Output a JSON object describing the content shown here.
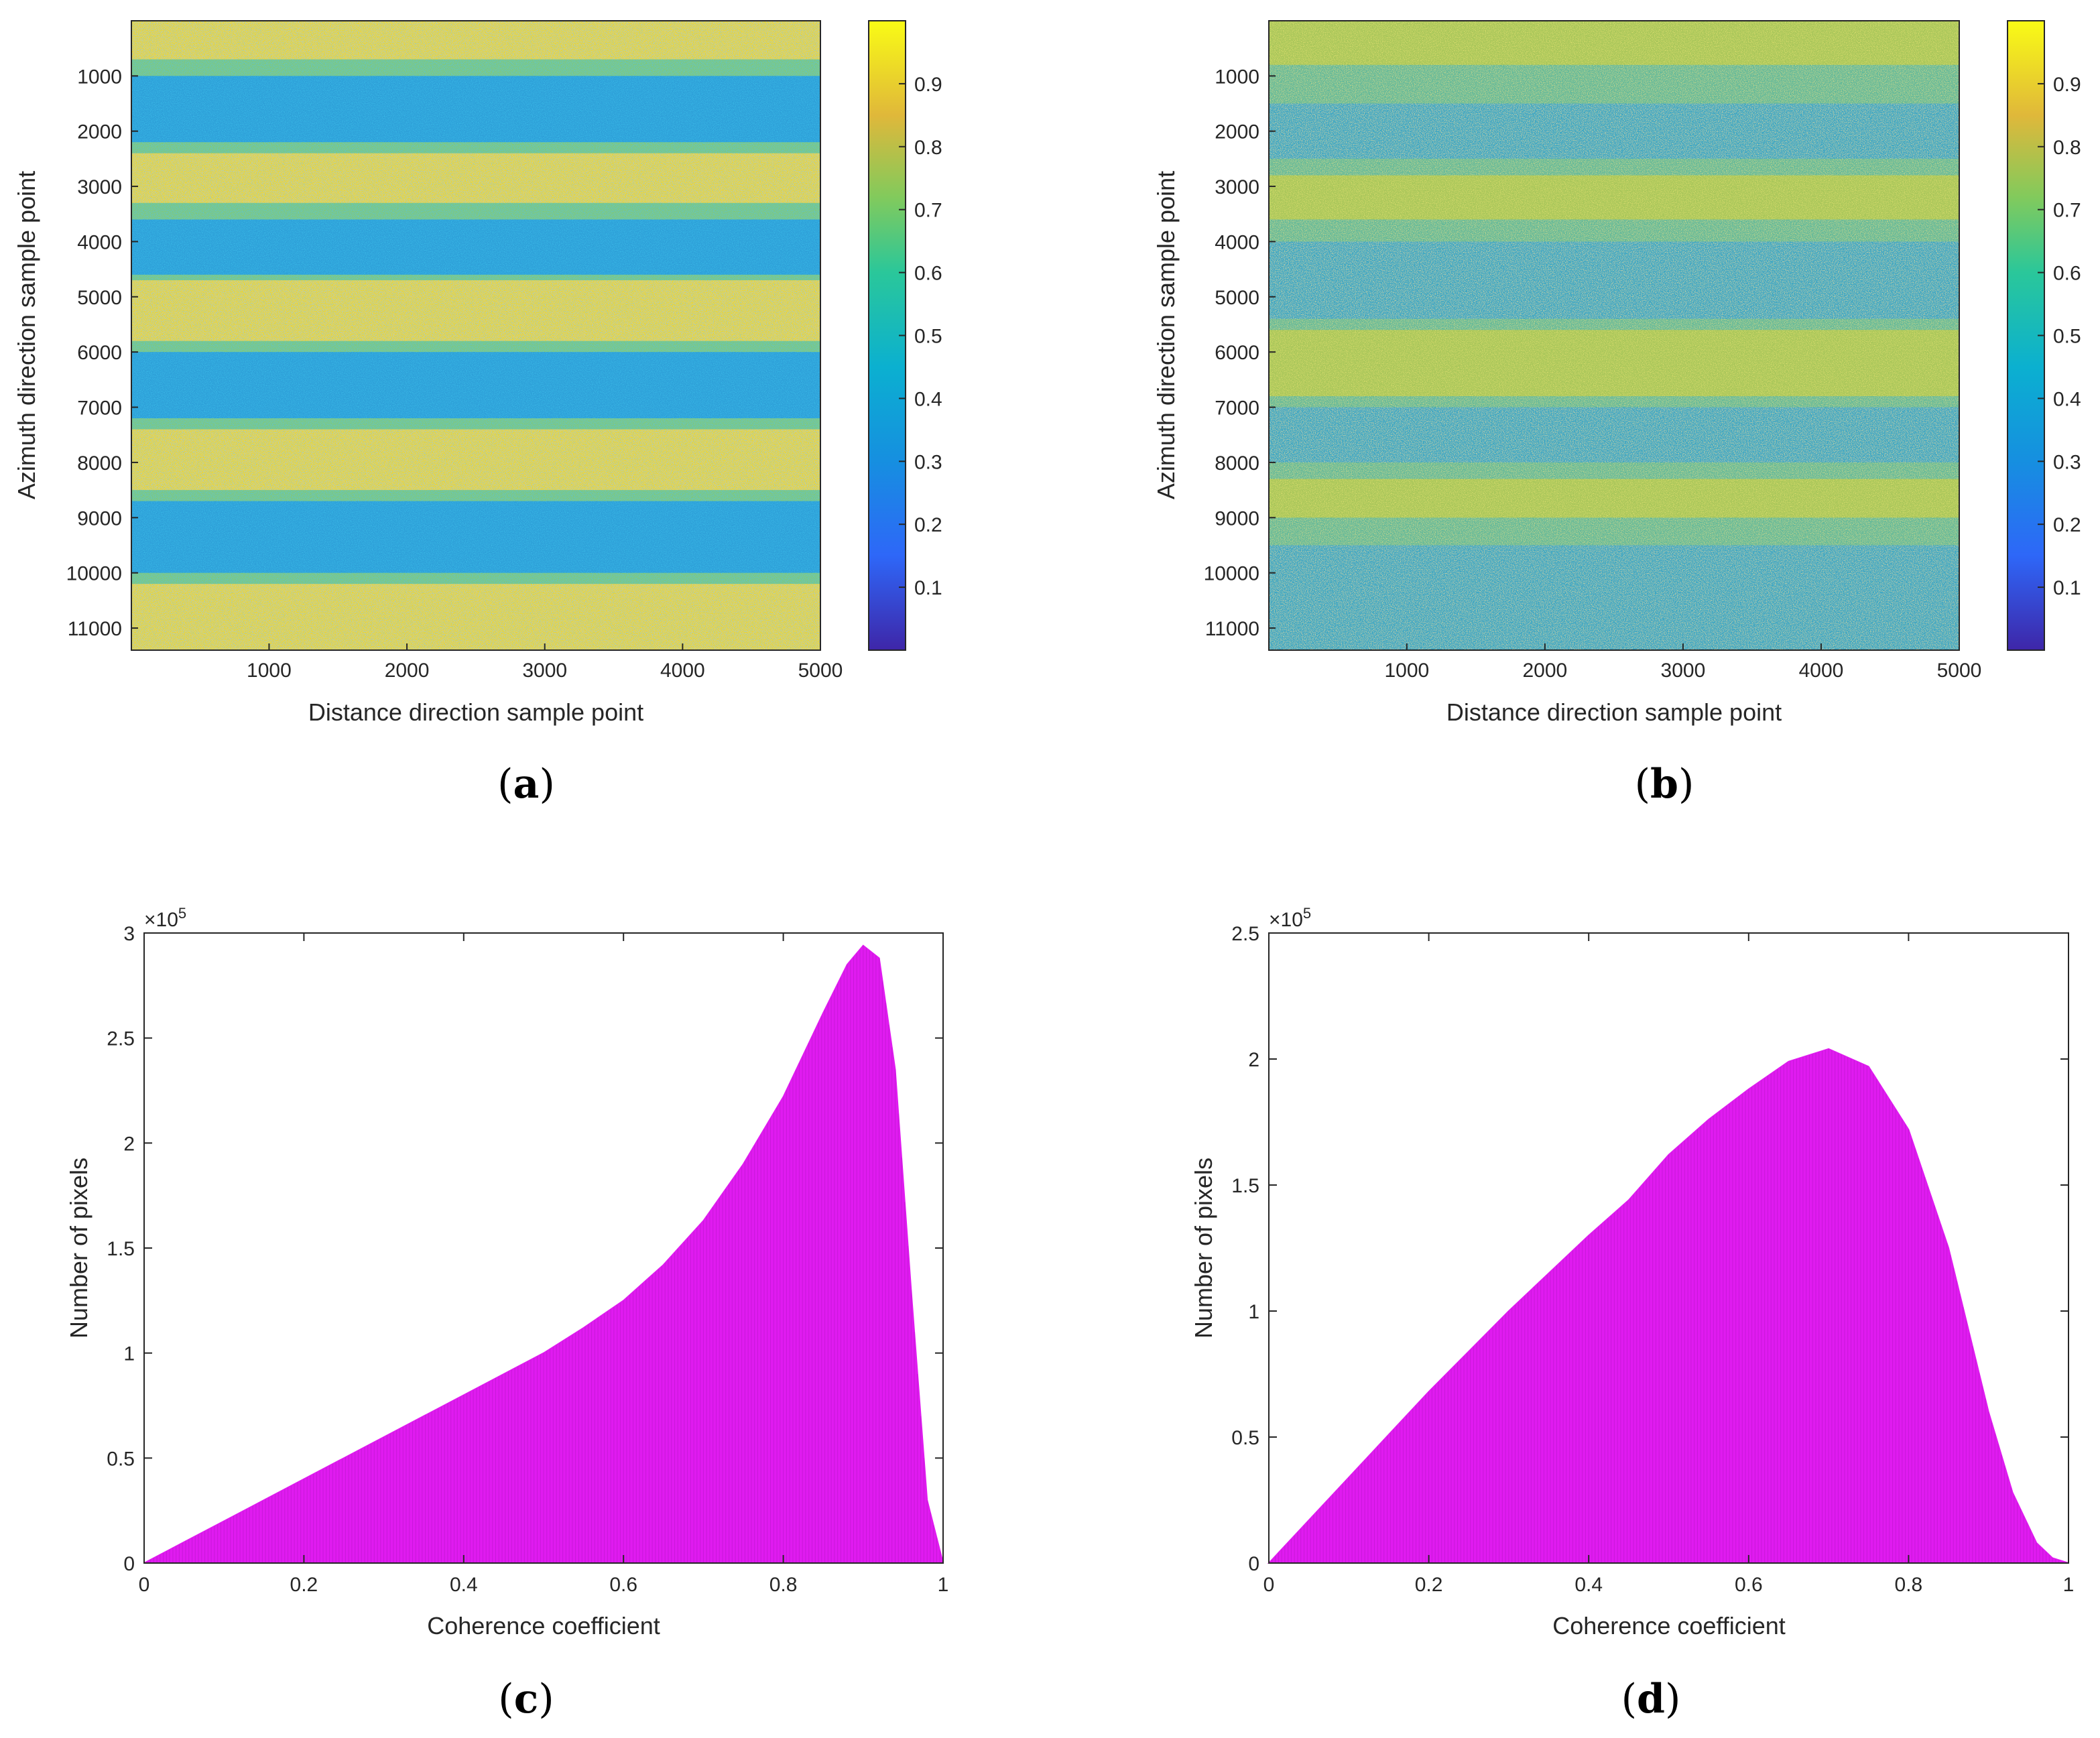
{
  "chart_data": [
    {
      "id": "a",
      "type": "heatmap",
      "panel_label": {
        "open": "(",
        "letter": "a",
        "close": ")"
      },
      "xlabel": "Distance direction sample point",
      "ylabel": "Azimuth direction sample point",
      "xlim": [
        1,
        5000
      ],
      "ylim": [
        1,
        11400
      ],
      "x_ticks": [
        "1000",
        "2000",
        "3000",
        "4000",
        "5000"
      ],
      "y_ticks": [
        "1000",
        "2000",
        "3000",
        "4000",
        "5000",
        "6000",
        "7000",
        "8000",
        "9000",
        "10000",
        "11000"
      ],
      "colorbar": {
        "range": [
          0,
          1
        ],
        "ticks": [
          "0.1",
          "0.2",
          "0.3",
          "0.4",
          "0.5",
          "0.6",
          "0.7",
          "0.8",
          "0.9"
        ]
      },
      "pattern": "alternating horizontal bands of high (~0.95) and lower (~0.4) coherence",
      "high_bands_azimuth": [
        [
          0,
          700
        ],
        [
          2400,
          3300
        ],
        [
          4700,
          5800
        ],
        [
          7400,
          8500
        ],
        [
          10200,
          11400
        ]
      ],
      "low_bands_azimuth": [
        [
          1000,
          2200
        ],
        [
          3600,
          4600
        ],
        [
          6000,
          7200
        ],
        [
          8700,
          10000
        ]
      ]
    },
    {
      "id": "b",
      "type": "heatmap",
      "panel_label": {
        "open": "(",
        "letter": "b",
        "close": ")"
      },
      "xlabel": "Distance direction sample point",
      "ylabel": "Azimuth direction sample point",
      "xlim": [
        1,
        5000
      ],
      "ylim": [
        1,
        11400
      ],
      "x_ticks": [
        "1000",
        "2000",
        "3000",
        "4000",
        "5000"
      ],
      "y_ticks": [
        "1000",
        "2000",
        "3000",
        "4000",
        "5000",
        "6000",
        "7000",
        "8000",
        "9000",
        "10000",
        "11000"
      ],
      "colorbar": {
        "range": [
          0,
          1
        ],
        "ticks": [
          "0.1",
          "0.2",
          "0.3",
          "0.4",
          "0.5",
          "0.6",
          "0.7",
          "0.8",
          "0.9"
        ]
      },
      "pattern": "weak horizontal bands, mostly mid coherence (~0.5-0.7)",
      "high_bands_azimuth": [
        [
          0,
          800
        ],
        [
          2800,
          3600
        ],
        [
          5600,
          6800
        ],
        [
          8300,
          9000
        ]
      ],
      "low_bands_azimuth": [
        [
          1500,
          2500
        ],
        [
          4000,
          5400
        ],
        [
          7000,
          8000
        ],
        [
          9500,
          11400
        ]
      ]
    },
    {
      "id": "c",
      "type": "bar",
      "panel_label": {
        "open": "(",
        "letter": "c",
        "close": ")"
      },
      "xlabel": "Coherence coefficient",
      "ylabel": "Number of pixels",
      "exponent_label": "×10",
      "exponent_power": "5",
      "xlim": [
        0,
        1
      ],
      "ylim": [
        0,
        3
      ],
      "x_ticks": [
        "0",
        "0.2",
        "0.4",
        "0.6",
        "0.8",
        "1"
      ],
      "y_ticks": [
        "0",
        "0.5",
        "1",
        "1.5",
        "2",
        "2.5",
        "3"
      ],
      "bar_color": "#E01BF0",
      "x": [
        0,
        0.05,
        0.1,
        0.15,
        0.2,
        0.25,
        0.3,
        0.35,
        0.4,
        0.45,
        0.5,
        0.55,
        0.6,
        0.65,
        0.7,
        0.75,
        0.8,
        0.85,
        0.88,
        0.9,
        0.92,
        0.94,
        0.96,
        0.98,
        1.0
      ],
      "values": [
        0,
        0.1,
        0.2,
        0.3,
        0.4,
        0.5,
        0.6,
        0.7,
        0.8,
        0.9,
        1.0,
        1.12,
        1.25,
        1.42,
        1.63,
        1.9,
        2.22,
        2.62,
        2.85,
        2.94,
        2.88,
        2.35,
        1.3,
        0.3,
        0
      ]
    },
    {
      "id": "d",
      "type": "bar",
      "panel_label": {
        "open": "(",
        "letter": "d",
        "close": ")"
      },
      "xlabel": "Coherence coefficient",
      "ylabel": "Number of pixels",
      "exponent_label": "×10",
      "exponent_power": "5",
      "xlim": [
        0,
        1
      ],
      "ylim": [
        0,
        2.5
      ],
      "x_ticks": [
        "0",
        "0.2",
        "0.4",
        "0.6",
        "0.8",
        "1"
      ],
      "y_ticks": [
        "0",
        "0.5",
        "1",
        "1.5",
        "2",
        "2.5"
      ],
      "bar_color": "#E01BF0",
      "x": [
        0,
        0.05,
        0.1,
        0.15,
        0.2,
        0.25,
        0.3,
        0.35,
        0.4,
        0.45,
        0.5,
        0.55,
        0.6,
        0.65,
        0.7,
        0.75,
        0.8,
        0.85,
        0.9,
        0.93,
        0.96,
        0.98,
        1.0
      ],
      "values": [
        0,
        0.17,
        0.34,
        0.51,
        0.68,
        0.84,
        1.0,
        1.15,
        1.3,
        1.44,
        1.62,
        1.76,
        1.88,
        1.99,
        2.04,
        1.97,
        1.72,
        1.25,
        0.6,
        0.28,
        0.08,
        0.02,
        0
      ]
    }
  ]
}
